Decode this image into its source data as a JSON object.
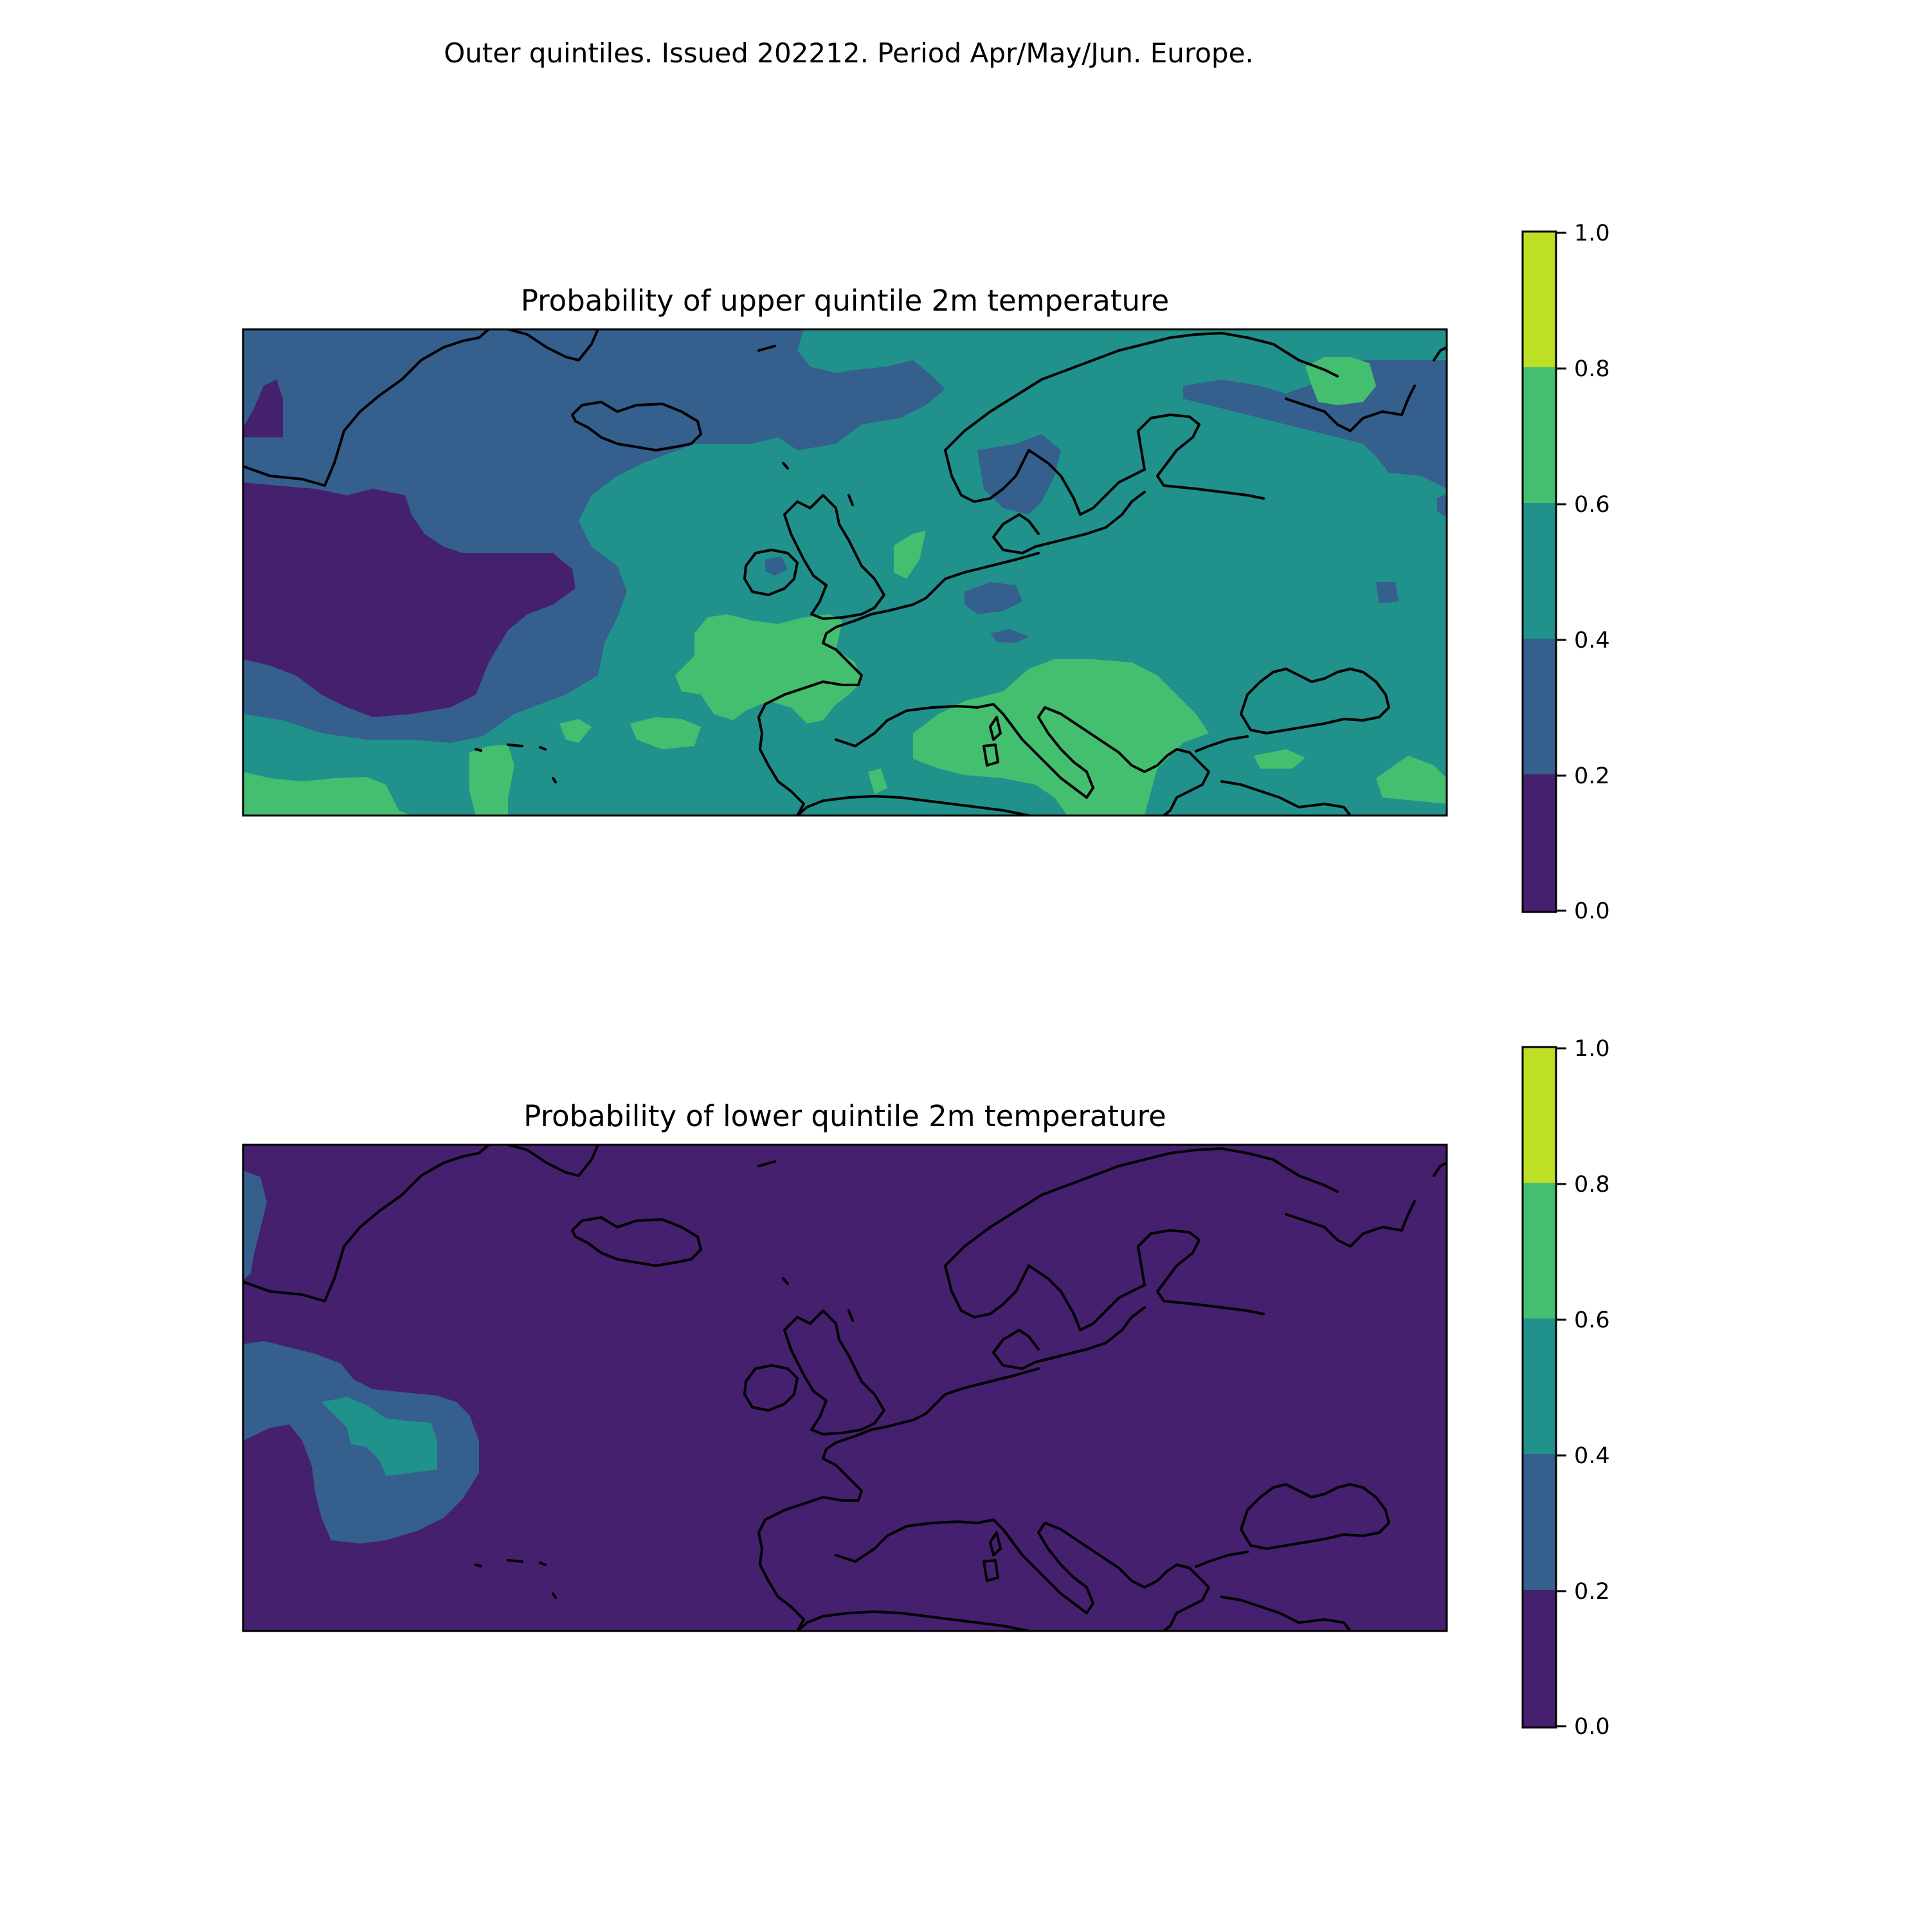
{
  "figure": {
    "title": "Outer quintiles. Issued 202212. Period Apr/May/Jun. Europe."
  },
  "colors": {
    "palette": [
      "#45206e",
      "#355f8d",
      "#21918c",
      "#44bf70",
      "#bddf26"
    ],
    "coastline": "#000000"
  },
  "chart_data": [
    {
      "type": "heatmap",
      "title": "Probability of upper quintile 2m temperature",
      "levels": [
        0.0,
        0.2,
        0.4,
        0.6,
        0.8,
        1.0
      ],
      "colorbar_ticks": [
        "0.0",
        "0.2",
        "0.4",
        "0.6",
        "0.8",
        "1.0"
      ],
      "regions": [
        {
          "region": "Greenland Sea / far North Atlantic",
          "value_range": "0.2-0.4"
        },
        {
          "region": "Central North Atlantic",
          "value_range": "0.0-0.2"
        },
        {
          "region": "Iberia and Mediterranean",
          "value_range": "0.4-0.8"
        },
        {
          "region": "Western France / Bay of Biscay",
          "value_range": "0.6-0.8"
        },
        {
          "region": "Italy and Balkans",
          "value_range": "0.6-0.8"
        },
        {
          "region": "Scandinavia and Eastern Europe",
          "value_range": "0.4-0.6"
        },
        {
          "region": "Barents Sea / NW Russia",
          "value_range": "0.2-0.4"
        }
      ]
    },
    {
      "type": "heatmap",
      "title": "Probability of lower quintile 2m temperature",
      "levels": [
        0.0,
        0.2,
        0.4,
        0.6,
        0.8,
        1.0
      ],
      "colorbar_ticks": [
        "0.0",
        "0.2",
        "0.4",
        "0.6",
        "0.8",
        "1.0"
      ],
      "regions": [
        {
          "region": "Most of domain",
          "value_range": "0.0-0.2"
        },
        {
          "region": "Western North Atlantic patch",
          "value_range": "0.2-0.4"
        },
        {
          "region": "Core of Western North Atlantic patch",
          "value_range": "0.4-0.6"
        },
        {
          "region": "Western edge near Greenland",
          "value_range": "0.2-0.4"
        }
      ]
    }
  ]
}
